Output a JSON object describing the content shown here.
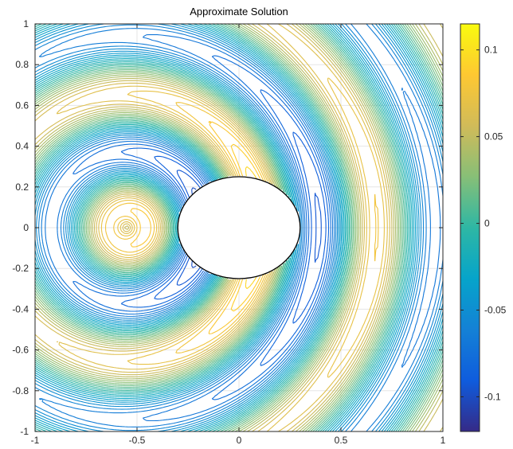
{
  "chart_data": {
    "type": "contour",
    "title": "Approximate Solution",
    "xlabel": "",
    "ylabel": "",
    "xlim": [
      -1,
      1
    ],
    "ylim": [
      -1,
      1
    ],
    "x_ticks": [
      -1,
      -0.5,
      0,
      0.5,
      1
    ],
    "x_tick_labels": [
      "-1",
      "-0.5",
      "0",
      "0.5",
      "1"
    ],
    "y_ticks": [
      -1,
      -0.8,
      -0.6,
      -0.4,
      -0.2,
      0,
      0.2,
      0.4,
      0.6,
      0.8,
      1
    ],
    "y_tick_labels": [
      "-1",
      "-0.8",
      "-0.6",
      "-0.4",
      "-0.2",
      "0",
      "0.2",
      "0.4",
      "0.6",
      "0.8",
      "1"
    ],
    "grid": true,
    "box": true,
    "scatterer": {
      "shape": "ellipse",
      "center": [
        0,
        0
      ],
      "semi_axes": [
        0.3,
        0.25
      ]
    },
    "field": {
      "description_free": true,
      "wavenumber": 22,
      "source_offset_x": -0.55,
      "decay": 0.7,
      "value_range": [
        -0.12,
        0.115
      ]
    },
    "contour_levels": 40,
    "colorbar": {
      "colormap": "parula",
      "range": [
        -0.12,
        0.115
      ],
      "ticks": [
        -0.1,
        -0.05,
        0,
        0.05,
        0.1
      ],
      "tick_labels": [
        "-0.1",
        "-0.05",
        "0",
        "0.05",
        "0.1"
      ]
    },
    "colors": {
      "parula_stops": [
        "#352a87",
        "#0f5cdd",
        "#1481d6",
        "#06a4ca",
        "#2eb7a4",
        "#87bf77",
        "#d1bb59",
        "#fec832",
        "#f9fb0e"
      ],
      "axis": "#262626",
      "grid": "#e6e6e6",
      "scatterer_fill": "#ffffff",
      "scatterer_edge": "#000000"
    }
  }
}
